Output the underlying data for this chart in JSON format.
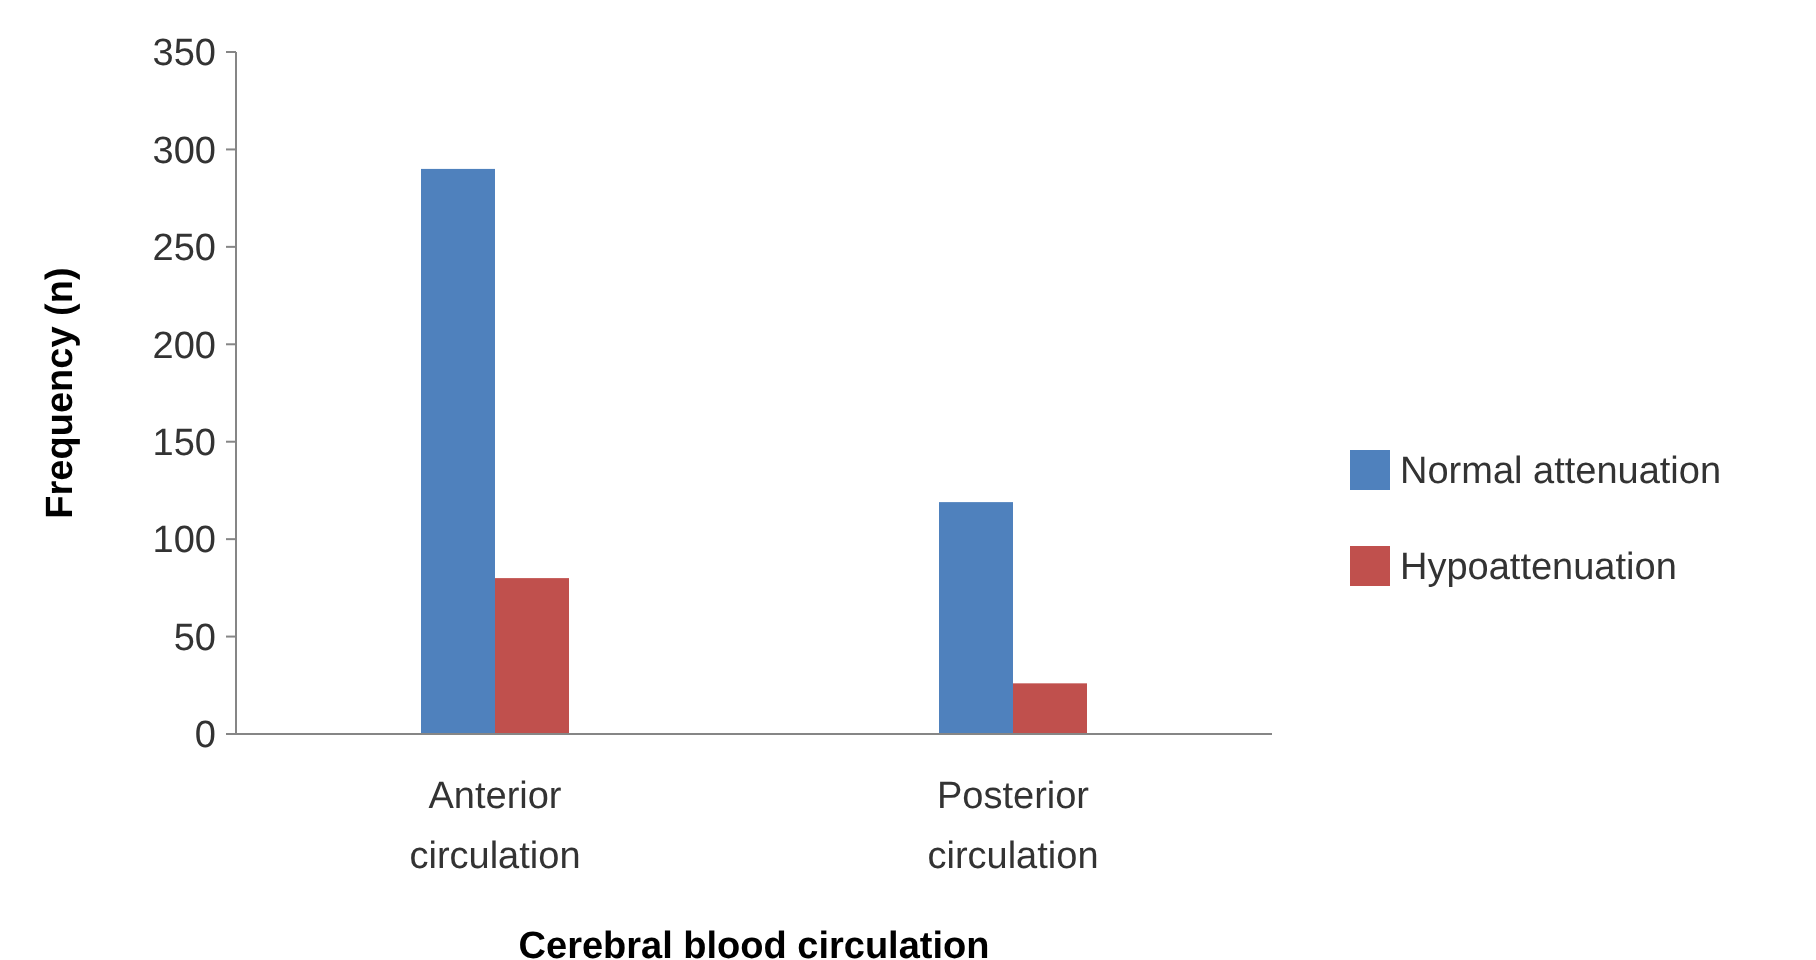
{
  "chart_data": {
    "type": "bar",
    "xlabel": "Cerebral blood circulation",
    "ylabel": "Frequency (n)",
    "categories": [
      "Anterior circulation",
      "Posterior circulation"
    ],
    "series": [
      {
        "name": "Normal attenuation",
        "color": "#4f81bd",
        "values": [
          290,
          119
        ]
      },
      {
        "name": "Hypoattenuation",
        "color": "#c0504d",
        "values": [
          80,
          26
        ]
      }
    ],
    "ylim": [
      0,
      350
    ],
    "yticks": [
      0,
      50,
      100,
      150,
      200,
      250,
      300,
      350
    ],
    "legend": "right"
  }
}
